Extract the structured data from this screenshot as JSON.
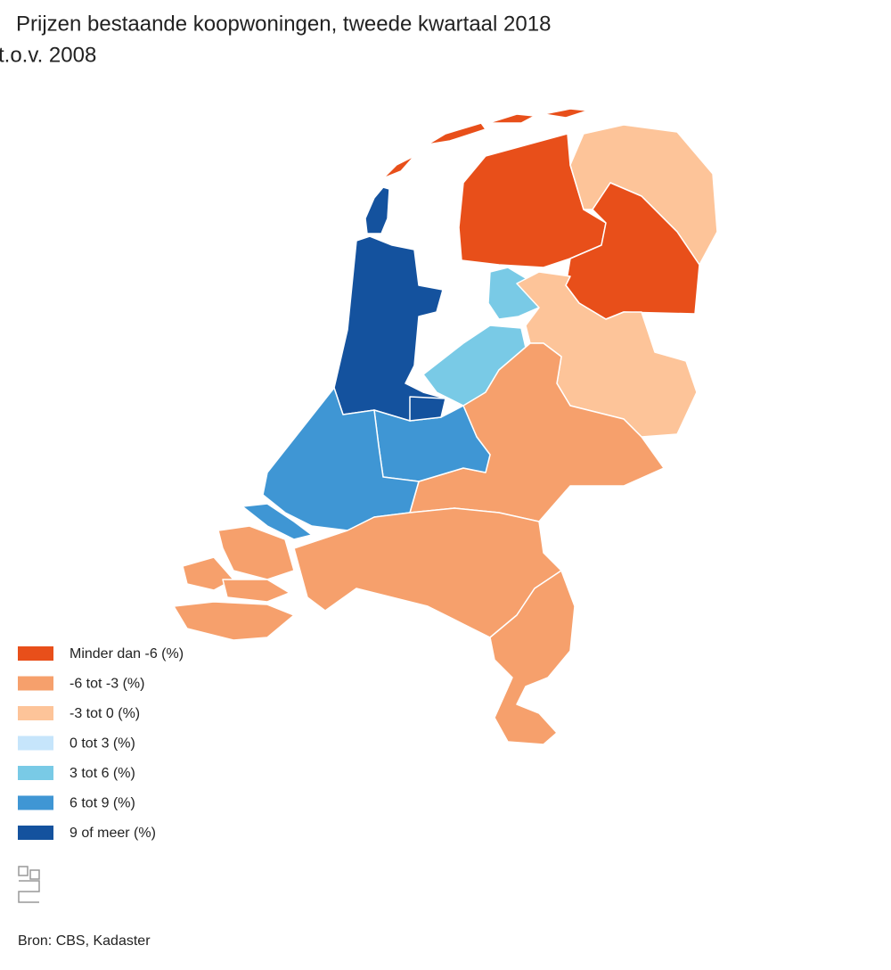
{
  "header": {
    "title": "Prijzen bestaande koopwoningen, tweede kwartaal 2018",
    "subtitle": "t.o.v. 2008"
  },
  "legend": {
    "items": [
      {
        "label": "Minder dan -6 (%)",
        "color": "#e84f1a"
      },
      {
        "label": "-6 tot -3 (%)",
        "color": "#f6a06c"
      },
      {
        "label": "-3 tot 0 (%)",
        "color": "#fdc499"
      },
      {
        "label": "0 tot 3 (%)",
        "color": "#c6e5fb"
      },
      {
        "label": "3 tot 6 (%)",
        "color": "#79cae6"
      },
      {
        "label": "6 tot 9 (%)",
        "color": "#3f96d4"
      },
      {
        "label": "9 of meer (%)",
        "color": "#14529e"
      }
    ]
  },
  "footer": {
    "source": "Bron: CBS, Kadaster"
  }
}
